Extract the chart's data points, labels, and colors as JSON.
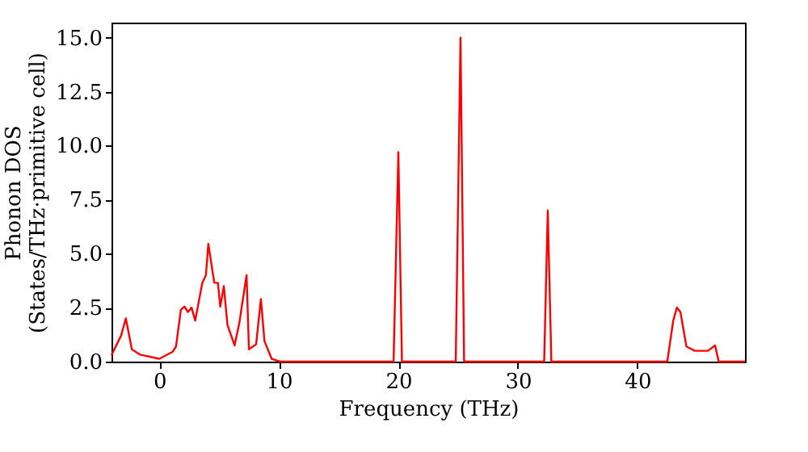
{
  "chart_data": {
    "type": "line",
    "xlabel": "Frequency (THz)",
    "ylabel": "Phonon DOS\n(States/THz·primitive cell)",
    "x": [
      -4.0,
      -3.2,
      -2.8,
      -2.3,
      -1.6,
      0.0,
      1.1,
      1.4,
      1.8,
      2.1,
      2.4,
      2.7,
      3.0,
      3.6,
      3.9,
      4.1,
      4.6,
      4.9,
      5.1,
      5.4,
      5.7,
      6.3,
      6.7,
      6.9,
      7.3,
      7.5,
      8.1,
      8.5,
      8.8,
      9.4,
      10.1,
      19.6,
      20.0,
      20.3,
      24.8,
      25.2,
      25.5,
      32.2,
      32.5,
      32.8,
      42.5,
      43.0,
      43.3,
      43.6,
      44.1,
      44.8,
      45.9,
      46.5,
      46.8,
      49.0
    ],
    "series": [
      {
        "color": "#ff0000",
        "values": [
          0.3,
          1.2,
          2.0,
          0.57,
          0.32,
          0.13,
          0.45,
          0.7,
          2.4,
          2.55,
          2.3,
          2.5,
          1.9,
          3.65,
          4.0,
          5.45,
          3.65,
          3.65,
          2.55,
          3.5,
          1.7,
          0.75,
          1.8,
          2.55,
          4.0,
          0.57,
          0.8,
          2.9,
          0.94,
          0.13,
          0.0,
          0.0,
          9.7,
          0.0,
          0.0,
          15.0,
          0.0,
          0.0,
          7.0,
          0.0,
          0.0,
          1.9,
          2.5,
          2.3,
          0.7,
          0.5,
          0.5,
          0.75,
          0.0,
          0.0
        ]
      }
    ],
    "xlim": [
      -4,
      49
    ],
    "xticks": [
      0,
      10,
      20,
      30,
      40
    ],
    "ylim": [
      0,
      15.7
    ],
    "yticks": [
      {
        "value": 0,
        "label": "0.0"
      },
      {
        "value": 2.5,
        "label": "2.5"
      },
      {
        "value": 5,
        "label": "5.0"
      },
      {
        "value": 7.5,
        "label": "7.5"
      },
      {
        "value": 10,
        "label": "10.0"
      },
      {
        "value": 12.5,
        "label": "12.5"
      },
      {
        "value": 15,
        "label": "15.0"
      }
    ],
    "grid": false
  }
}
